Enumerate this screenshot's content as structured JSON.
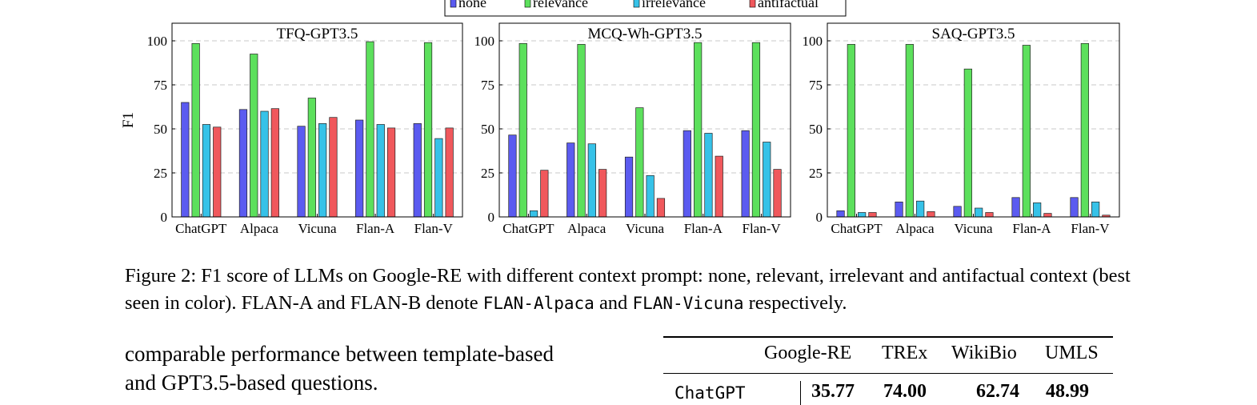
{
  "legend": {
    "items": [
      {
        "label": "none",
        "color": "#5b5bf0"
      },
      {
        "label": "relevance",
        "color": "#5ce05c"
      },
      {
        "label": "irrelevance",
        "color": "#36c2e8"
      },
      {
        "label": "antifactual",
        "color": "#f0585c"
      }
    ]
  },
  "chart_data": [
    {
      "type": "bar",
      "title": "TFQ-GPT3.5",
      "ylabel": "F1",
      "xlabel": "",
      "ylim": [
        0,
        110
      ],
      "yticks": [
        0,
        25,
        50,
        75,
        100
      ],
      "grid": "horizontal dashed",
      "categories": [
        "ChatGPT",
        "Alpaca",
        "Vicuna",
        "Flan-A",
        "Flan-V"
      ],
      "series": [
        {
          "name": "none",
          "values": [
            65,
            61,
            51.5,
            55,
            53
          ]
        },
        {
          "name": "relevance",
          "values": [
            98.5,
            92.5,
            67.5,
            99.5,
            99
          ]
        },
        {
          "name": "irrelevance",
          "values": [
            52.5,
            60,
            53,
            52.5,
            44.5
          ]
        },
        {
          "name": "antifactual",
          "values": [
            51,
            61.5,
            56.5,
            50.5,
            50.5
          ]
        }
      ]
    },
    {
      "type": "bar",
      "title": "MCQ-Wh-GPT3.5",
      "ylabel": "",
      "xlabel": "",
      "ylim": [
        0,
        110
      ],
      "yticks": [
        0,
        25,
        50,
        75,
        100
      ],
      "grid": "horizontal dashed",
      "categories": [
        "ChatGPT",
        "Alpaca",
        "Vicuna",
        "Flan-A",
        "Flan-V"
      ],
      "series": [
        {
          "name": "none",
          "values": [
            46.5,
            42,
            34,
            49,
            49
          ]
        },
        {
          "name": "relevance",
          "values": [
            98.5,
            98,
            62,
            99,
            99
          ]
        },
        {
          "name": "irrelevance",
          "values": [
            3.5,
            41.5,
            23.5,
            47.5,
            42.5
          ]
        },
        {
          "name": "antifactual",
          "values": [
            26.5,
            27,
            10.5,
            34.5,
            27
          ]
        }
      ]
    },
    {
      "type": "bar",
      "title": "SAQ-GPT3.5",
      "ylabel": "",
      "xlabel": "",
      "ylim": [
        0,
        110
      ],
      "yticks": [
        0,
        25,
        50,
        75,
        100
      ],
      "grid": "horizontal dashed",
      "categories": [
        "ChatGPT",
        "Alpaca",
        "Vicuna",
        "Flan-A",
        "Flan-V"
      ],
      "series": [
        {
          "name": "none",
          "values": [
            3.5,
            8.5,
            6,
            11,
            11
          ]
        },
        {
          "name": "relevance",
          "values": [
            98,
            98,
            84,
            97.5,
            98.5
          ]
        },
        {
          "name": "irrelevance",
          "values": [
            2.5,
            9,
            5,
            8,
            8.5
          ]
        },
        {
          "name": "antifactual",
          "values": [
            2.5,
            3,
            2.5,
            2,
            1
          ]
        }
      ]
    }
  ],
  "caption": {
    "part1": "Figure 2: F1 score of LLMs on Google-RE with different context prompt: none, relevant, irrelevant and antifactual context (best seen in color). FLAN-A and FLAN-B denote ",
    "mono1": "FLAN-Alpaca",
    "part2": " and ",
    "mono2": "FLAN-Vicuna",
    "part3": " respectively."
  },
  "body_text": {
    "line1": "comparable performance between template-based",
    "line2": "and GPT3.5-based questions."
  },
  "table": {
    "headers": [
      "Google-RE",
      "TREx",
      "WikiBio",
      "UMLS"
    ],
    "row": {
      "model": "ChatGPT",
      "values": [
        "35.77",
        "74.00",
        "62.74",
        "48.99"
      ]
    }
  }
}
